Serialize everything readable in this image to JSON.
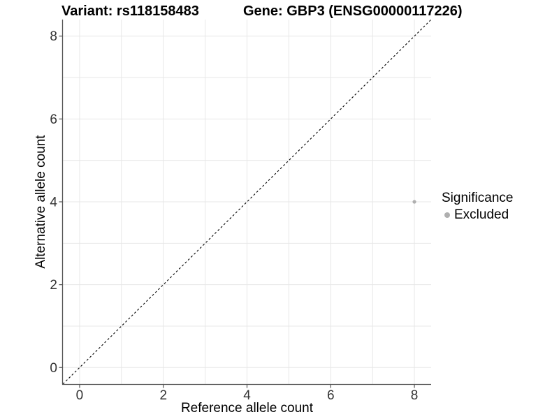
{
  "figure": {
    "title_variant": "Variant: rs118158483",
    "title_gene": "Gene: GBP3 (ENSG00000117226)"
  },
  "chart_data": {
    "type": "scatter",
    "title": "Variant: rs118158483    Gene: GBP3 (ENSG00000117226)",
    "xlabel": "Reference allele count",
    "ylabel": "Alternative allele count",
    "xlim": [
      -0.4,
      8.4
    ],
    "ylim": [
      -0.4,
      8.4
    ],
    "x_ticks": [
      0,
      2,
      4,
      6,
      8
    ],
    "y_ticks": [
      0,
      2,
      4,
      6,
      8
    ],
    "x_grid": [
      0,
      1,
      2,
      3,
      4,
      5,
      6,
      7,
      8
    ],
    "y_grid": [
      0,
      1,
      2,
      3,
      4,
      5,
      6,
      7,
      8
    ],
    "grid": true,
    "points": [
      {
        "x": 8,
        "y": 4,
        "series": "Excluded",
        "color": "#afafaf"
      }
    ],
    "reference_line": {
      "slope": 1,
      "intercept": 0,
      "style": "dashed",
      "color": "#000000"
    },
    "legend": {
      "title": "Significance",
      "position": "right",
      "entries": [
        {
          "label": "Excluded",
          "color": "#afafaf"
        }
      ]
    }
  },
  "colors": {
    "background": "#ffffff",
    "grid_line": "#e7e7e7",
    "axis_line": "#555555",
    "tick_text": "#333333",
    "title_text": "#000000",
    "point_excluded": "#afafaf"
  }
}
